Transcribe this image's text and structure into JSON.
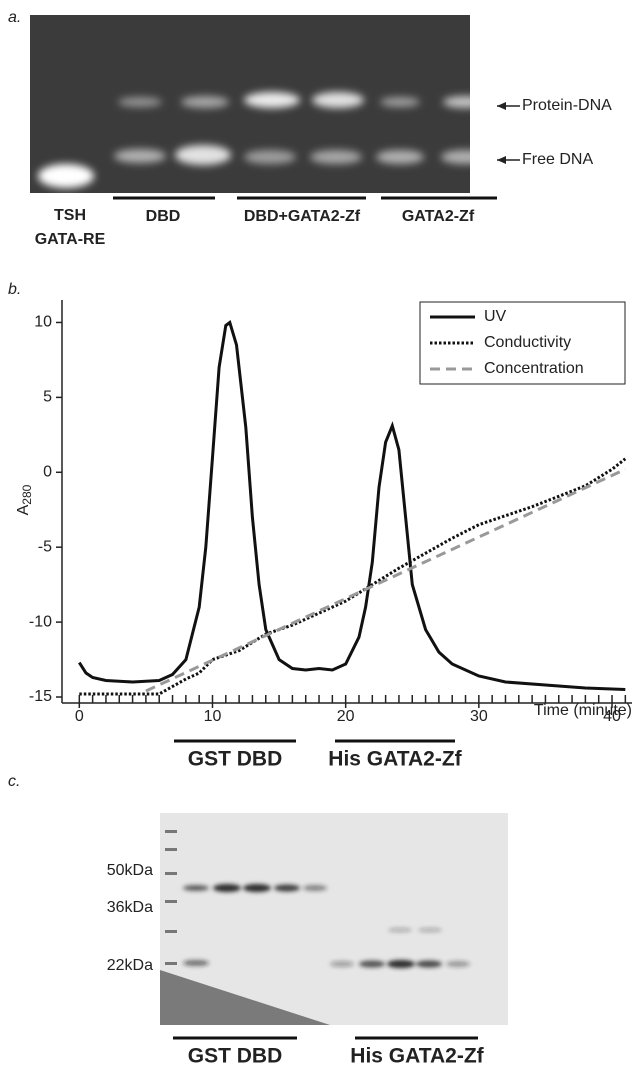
{
  "panel_a": {
    "label": "a.",
    "band_labels": [
      "Protein-DNA",
      "Free DNA"
    ],
    "control": [
      "TSH",
      "GATA-RE"
    ],
    "lane_groups": [
      "DBD",
      "DBD+GATA2-Zf",
      "GATA2-Zf"
    ]
  },
  "chart_data": {
    "type": "line",
    "label": "b.",
    "ylabel": "A",
    "ylabel_sub": "280",
    "xlabel": "Time (minute)",
    "xlim": [
      -1.3,
      41.5
    ],
    "ylim": [
      -15.4,
      11.5
    ],
    "xticks": [
      0,
      10,
      20,
      30,
      40
    ],
    "yticks": [
      10,
      5,
      0,
      -5,
      -10,
      -15
    ],
    "xminorticks": [
      0,
      1,
      2,
      3,
      4,
      5,
      6,
      7,
      8,
      9,
      10,
      11,
      12,
      13,
      14,
      15,
      16,
      17,
      18,
      19,
      20,
      21,
      22,
      23,
      24,
      25,
      26,
      27,
      28,
      29,
      30,
      31,
      32,
      33,
      34,
      35,
      36,
      37,
      38,
      39,
      40,
      41
    ],
    "legend": "upper right",
    "series": [
      {
        "name": "UV",
        "color": "#111111",
        "style": "solid",
        "x": [
          0,
          0.5,
          1,
          2,
          4,
          6,
          7,
          8,
          9,
          9.5,
          10,
          10.5,
          11,
          11.3,
          11.8,
          12.5,
          13,
          13.5,
          14,
          15,
          16,
          17,
          18,
          19,
          20,
          21,
          21.5,
          22,
          22.5,
          23,
          23.5,
          24,
          24.5,
          25,
          26,
          27,
          28,
          30,
          32,
          35,
          38,
          41
        ],
        "values": [
          -12.7,
          -13.4,
          -13.7,
          -13.9,
          -14.0,
          -13.9,
          -13.5,
          -12.5,
          -9,
          -5,
          1,
          7,
          9.8,
          10,
          8.5,
          3,
          -3,
          -7.5,
          -10.5,
          -12.5,
          -13.1,
          -13.2,
          -13.1,
          -13.2,
          -12.8,
          -11,
          -9,
          -6,
          -1,
          2,
          3.1,
          1.5,
          -3,
          -7.5,
          -10.5,
          -12,
          -12.8,
          -13.6,
          -14.0,
          -14.2,
          -14.4,
          -14.5
        ]
      },
      {
        "name": "Conductivity",
        "color": "#111111",
        "style": "dotted",
        "x": [
          0,
          6,
          7,
          8,
          9,
          10,
          12,
          14,
          16,
          18,
          20,
          22,
          24,
          26,
          28,
          30,
          32,
          34,
          36,
          38,
          40,
          41
        ],
        "values": [
          -14.8,
          -14.8,
          -14.3,
          -13.8,
          -13.4,
          -12.5,
          -11.9,
          -10.8,
          -10.2,
          -9.4,
          -8.6,
          -7.5,
          -6.4,
          -5.4,
          -4.4,
          -3.5,
          -2.9,
          -2.3,
          -1.6,
          -0.9,
          0.2,
          0.9
        ]
      },
      {
        "name": "Concentration",
        "color": "#999999",
        "style": "dashed",
        "x": [
          5,
          41
        ],
        "values": [
          -14.6,
          0.2
        ]
      }
    ],
    "fractions": [
      "GST DBD",
      "His GATA2-Zf"
    ]
  },
  "panel_c": {
    "label": "c.",
    "markers": [
      "50kDa",
      "36kDa",
      "22kDa"
    ],
    "fractions": [
      "GST DBD",
      "His GATA2-Zf"
    ]
  }
}
